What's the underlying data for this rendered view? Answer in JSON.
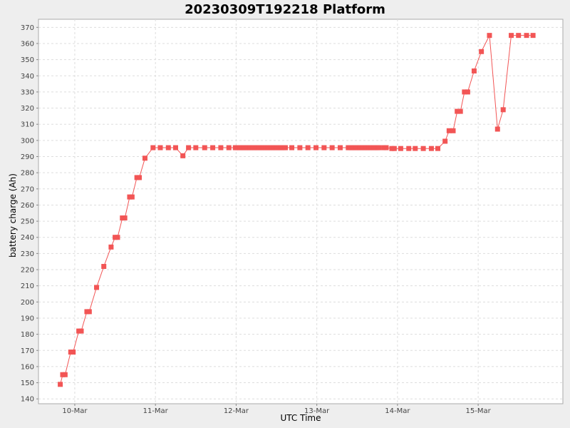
{
  "chart_data": {
    "type": "line",
    "title": "20230309T192218 Platform",
    "xlabel": "UTC Time",
    "ylabel": "battery charge (Ah)",
    "x_ticks": [
      "10-Mar",
      "11-Mar",
      "12-Mar",
      "13-Mar",
      "14-Mar",
      "15-Mar"
    ],
    "y_ticks": [
      140,
      150,
      160,
      170,
      180,
      190,
      200,
      210,
      220,
      230,
      240,
      250,
      260,
      270,
      280,
      290,
      300,
      310,
      320,
      330,
      340,
      350,
      360,
      370
    ],
    "xlim_days": [
      9.55,
      16.05
    ],
    "ylim": [
      137,
      375
    ],
    "grid": true,
    "series_color": "#f25555",
    "series": [
      {
        "x_days": [
          9.82,
          9.85,
          9.88,
          9.95,
          9.98,
          10.05,
          10.08,
          10.15,
          10.18,
          10.27,
          10.36,
          10.45,
          10.5,
          10.53,
          10.59,
          10.62,
          10.68,
          10.71,
          10.77,
          10.8,
          10.87,
          10.97,
          11.06,
          11.16,
          11.25,
          11.34,
          11.41,
          11.5,
          11.61,
          11.71,
          11.81,
          11.91,
          11.99,
          12.01,
          12.03,
          12.05,
          12.07,
          12.09,
          12.11,
          12.13,
          12.15,
          12.17,
          12.19,
          12.21,
          12.23,
          12.25,
          12.27,
          12.29,
          12.31,
          12.33,
          12.35,
          12.37,
          12.39,
          12.41,
          12.43,
          12.45,
          12.47,
          12.49,
          12.51,
          12.53,
          12.55,
          12.57,
          12.59,
          12.61,
          12.69,
          12.79,
          12.89,
          12.99,
          13.09,
          13.19,
          13.29,
          13.39,
          13.41,
          13.43,
          13.45,
          13.47,
          13.49,
          13.51,
          13.53,
          13.55,
          13.57,
          13.59,
          13.61,
          13.63,
          13.65,
          13.67,
          13.69,
          13.71,
          13.73,
          13.75,
          13.77,
          13.83,
          13.86,
          13.93,
          13.96,
          14.04,
          14.14,
          14.22,
          14.32,
          14.42,
          14.5,
          14.59,
          14.64,
          14.69,
          14.74,
          14.78,
          14.83,
          14.87,
          14.95,
          15.04,
          15.14,
          15.24,
          15.31,
          15.41,
          15.5,
          15.6,
          15.68
        ],
        "y_values": [
          149,
          155,
          155,
          169,
          169,
          182,
          182,
          194,
          194,
          209,
          222,
          234,
          240,
          240,
          252,
          252,
          265,
          265,
          277,
          277,
          289,
          295.5,
          295.5,
          295.5,
          295.5,
          290.5,
          295.5,
          295.5,
          295.5,
          295.5,
          295.5,
          295.5,
          295.5,
          295.5,
          295.5,
          295.5,
          295.5,
          295.5,
          295.5,
          295.5,
          295.5,
          295.5,
          295.5,
          295.5,
          295.5,
          295.5,
          295.5,
          295.5,
          295.5,
          295.5,
          295.5,
          295.5,
          295.5,
          295.5,
          295.5,
          295.5,
          295.5,
          295.5,
          295.5,
          295.5,
          295.5,
          295.5,
          295.5,
          295.5,
          295.5,
          295.5,
          295.5,
          295.5,
          295.5,
          295.5,
          295.5,
          295.5,
          295.5,
          295.5,
          295.5,
          295.5,
          295.5,
          295.5,
          295.5,
          295.5,
          295.5,
          295.5,
          295.5,
          295.5,
          295.5,
          295.5,
          295.5,
          295.5,
          295.5,
          295.5,
          295.5,
          295.5,
          295.5,
          295,
          295,
          295,
          295,
          295,
          295,
          295,
          295,
          299.5,
          306,
          306,
          318,
          318,
          330,
          330,
          343,
          355,
          365,
          307,
          319,
          365,
          365,
          365,
          365
        ]
      }
    ]
  }
}
